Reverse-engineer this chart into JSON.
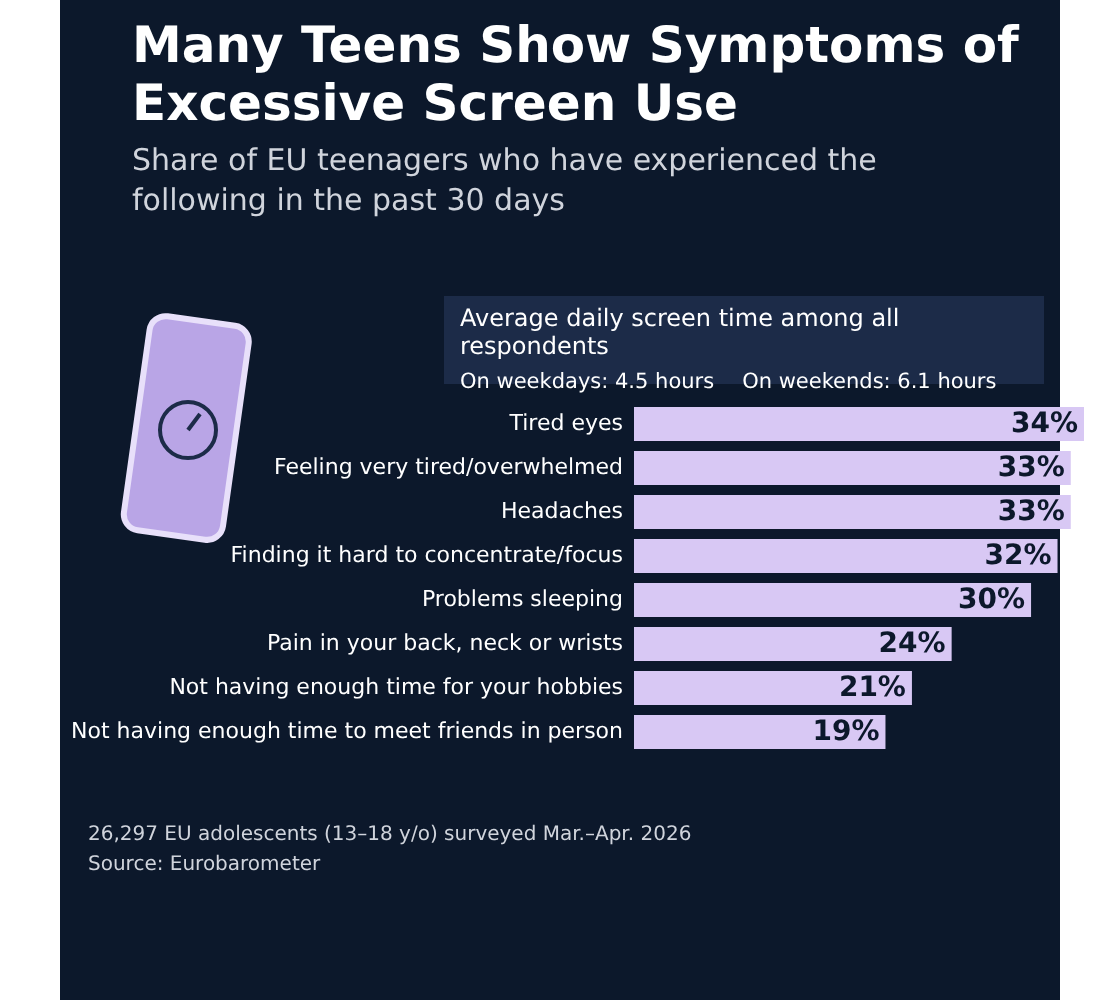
{
  "chart_data": {
    "type": "bar",
    "orientation": "horizontal",
    "title": "Many Teens Show Symptoms of Excessive Screen Use",
    "subtitle": "Share of EU teenagers who have experienced the following in the past 30 days",
    "categories": [
      "Tired eyes",
      "Feeling very tired/overwhelmed",
      "Headaches",
      "Finding it hard to concentrate/focus",
      "Problems sleeping",
      "Pain in your back, neck or wrists",
      "Not having enough time for your hobbies",
      "Not having enough time to meet friends in person"
    ],
    "values": [
      34,
      33,
      33,
      32,
      30,
      24,
      21,
      19
    ],
    "value_labels": [
      "34%",
      "33%",
      "33%",
      "32%",
      "30%",
      "24%",
      "21%",
      "19%"
    ],
    "color": "#d8c8f4",
    "annotations": [
      "Average daily screen time among all respondents",
      "On weekdays: 4.5 hours",
      "On weekends: 6.1 hours",
      "26,297 EU adolescents (13–18 y/o) surveyed Mar.–Apr. 2026",
      "Source: Eurobarometer"
    ]
  }
}
